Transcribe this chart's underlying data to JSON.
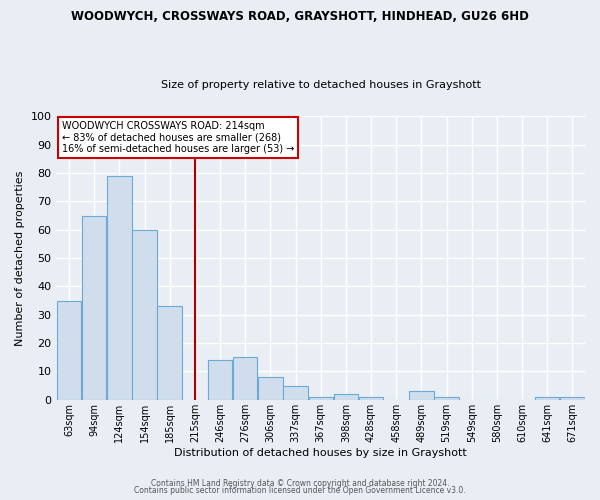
{
  "title1": "WOODWYCH, CROSSWAYS ROAD, GRAYSHOTT, HINDHEAD, GU26 6HD",
  "title2": "Size of property relative to detached houses in Grayshott",
  "xlabel": "Distribution of detached houses by size in Grayshott",
  "ylabel": "Number of detached properties",
  "categories": [
    "63sqm",
    "94sqm",
    "124sqm",
    "154sqm",
    "185sqm",
    "215sqm",
    "246sqm",
    "276sqm",
    "306sqm",
    "337sqm",
    "367sqm",
    "398sqm",
    "428sqm",
    "458sqm",
    "489sqm",
    "519sqm",
    "549sqm",
    "580sqm",
    "610sqm",
    "641sqm",
    "671sqm"
  ],
  "values": [
    35,
    65,
    79,
    60,
    33,
    0,
    14,
    15,
    8,
    5,
    1,
    2,
    1,
    0,
    3,
    1,
    0,
    0,
    0,
    1,
    1
  ],
  "bar_color": "#cfdded",
  "bar_edge_color": "#6aaad4",
  "marker_index": 5,
  "marker_color": "#aa0000",
  "ylim": [
    0,
    100
  ],
  "yticks": [
    0,
    10,
    20,
    30,
    40,
    50,
    60,
    70,
    80,
    90,
    100
  ],
  "annotation_title": "WOODWYCH CROSSWAYS ROAD: 214sqm",
  "annotation_line1": "← 83% of detached houses are smaller (268)",
  "annotation_line2": "16% of semi-detached houses are larger (53) →",
  "footer1": "Contains HM Land Registry data © Crown copyright and database right 2024.",
  "footer2": "Contains public sector information licensed under the Open Government Licence v3.0.",
  "background_color": "#e8eef4",
  "plot_background": "#e8eef4",
  "grid_color": "#ffffff"
}
